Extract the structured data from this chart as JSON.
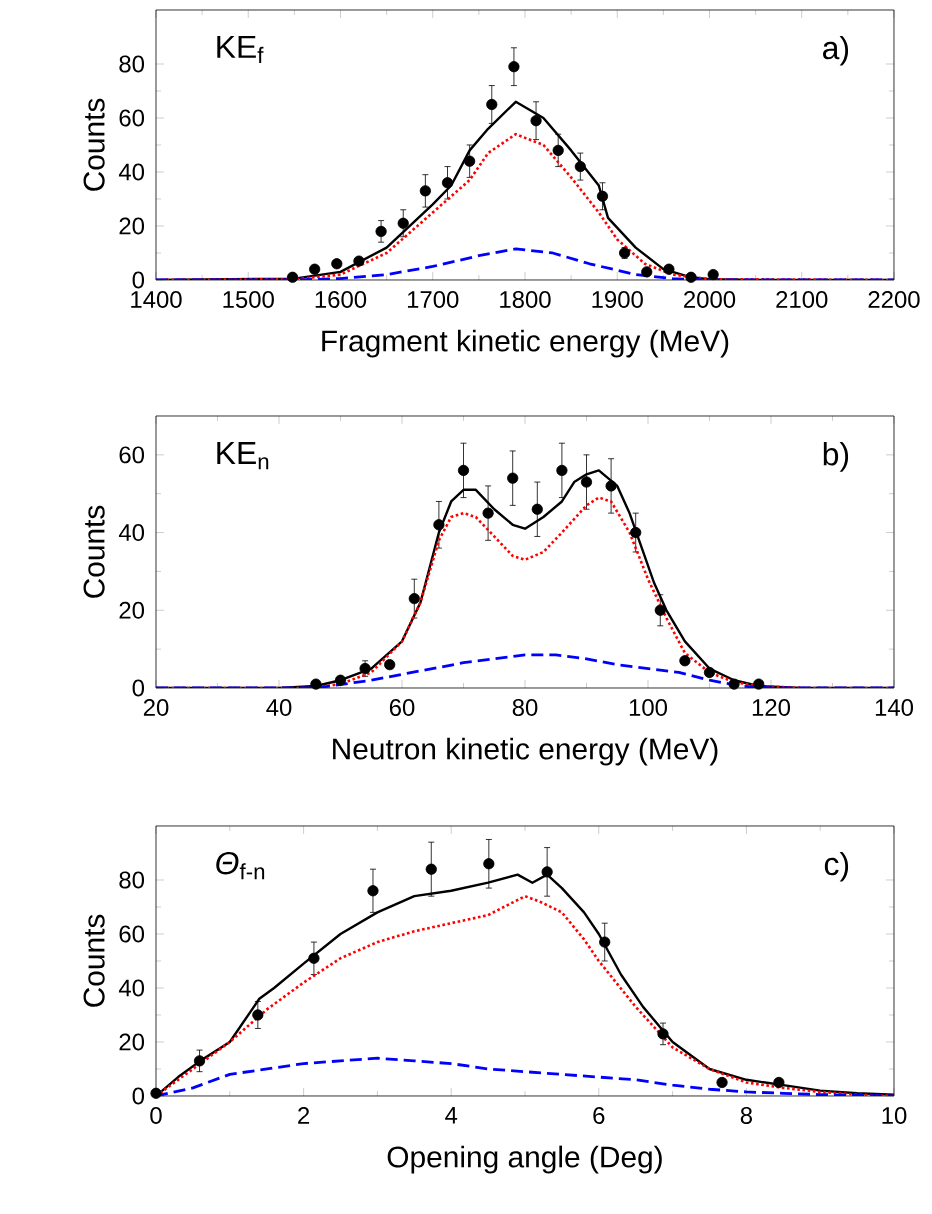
{
  "chart_data": [
    {
      "type": "line",
      "xlabel": "Fragment kinetic energy (MeV)",
      "ylabel": "Counts",
      "xlim": [
        1400,
        2200
      ],
      "ylim": [
        0,
        100
      ],
      "xticks": [
        1400,
        1500,
        1600,
        1700,
        1800,
        1900,
        2000,
        2100,
        2200
      ],
      "yticks": [
        0,
        20,
        40,
        60,
        80
      ],
      "annotations": [
        "KE$_{f}$",
        "a)"
      ],
      "series": [
        {
          "type": "scatter",
          "marker": "circle",
          "color": "#000000",
          "x": [
            1548,
            1572,
            1596,
            1620,
            1644,
            1668,
            1692,
            1716,
            1740,
            1764,
            1788,
            1812,
            1836,
            1860,
            1884,
            1908,
            1932,
            1956,
            1980,
            2004
          ],
          "values": [
            1,
            4,
            6,
            7,
            18,
            21,
            33,
            36,
            44,
            65,
            79,
            59,
            48,
            42,
            31,
            10,
            3,
            4,
            1,
            2
          ],
          "errors": [
            null,
            null,
            null,
            1,
            4,
            5,
            6,
            6,
            6,
            7,
            7,
            7,
            6,
            5,
            5,
            2,
            null,
            null,
            null,
            null
          ]
        },
        {
          "type": "line",
          "line_style": "solid",
          "color": "#000000",
          "x": [
            1400,
            1550,
            1600,
            1650,
            1700,
            1720,
            1740,
            1760,
            1790,
            1820,
            1850,
            1880,
            1890,
            1920,
            1950,
            1980,
            2000,
            2050,
            2200
          ],
          "values": [
            0,
            0.5,
            3,
            12,
            28,
            35,
            48,
            56,
            66,
            60,
            48,
            35,
            23,
            12,
            4,
            1,
            0.3,
            0,
            0
          ]
        },
        {
          "type": "line",
          "line_style": "dotted",
          "color": "#ff0000",
          "x": [
            1400,
            1550,
            1600,
            1650,
            1700,
            1740,
            1760,
            1790,
            1820,
            1850,
            1880,
            1900,
            1930,
            1960,
            2000,
            2200
          ],
          "values": [
            0,
            0.3,
            2,
            10,
            25,
            37,
            47,
            54,
            50,
            38,
            25,
            15,
            6,
            2,
            0.3,
            0
          ]
        },
        {
          "type": "line",
          "line_style": "dashed",
          "color": "#0000ff",
          "x": [
            1400,
            1550,
            1600,
            1650,
            1700,
            1750,
            1790,
            1830,
            1870,
            1920,
            1960,
            2000,
            2200
          ],
          "values": [
            0,
            0,
            0.5,
            2,
            5,
            9,
            11.5,
            10,
            6,
            2,
            0.5,
            0,
            0
          ]
        }
      ]
    },
    {
      "type": "line",
      "xlabel": "Neutron kinetic energy (MeV)",
      "ylabel": "Counts",
      "xlim": [
        20,
        140
      ],
      "ylim": [
        0,
        70
      ],
      "xticks": [
        20,
        40,
        60,
        80,
        100,
        120,
        140
      ],
      "yticks": [
        0,
        20,
        40,
        60
      ],
      "annotations": [
        "KE$_{n}$",
        "b)"
      ],
      "series": [
        {
          "type": "scatter",
          "marker": "circle",
          "color": "#000000",
          "x": [
            46,
            50,
            54,
            58,
            62,
            66,
            70,
            74,
            78,
            82,
            86,
            90,
            94,
            98,
            102,
            106,
            110,
            114,
            118
          ],
          "values": [
            1,
            2,
            5,
            6,
            23,
            42,
            56,
            45,
            54,
            46,
            56,
            53,
            52,
            40,
            20,
            7,
            4,
            1,
            1
          ],
          "errors": [
            null,
            null,
            2,
            1,
            5,
            6,
            7,
            7,
            7,
            7,
            7,
            7,
            7,
            5,
            4,
            1,
            null,
            null,
            null
          ]
        },
        {
          "type": "line",
          "line_style": "solid",
          "color": "#000000",
          "x": [
            20,
            40,
            46,
            50,
            55,
            60,
            63,
            66,
            68,
            70,
            72,
            75,
            78,
            80,
            83,
            86,
            88,
            90,
            92,
            95,
            97,
            99,
            101,
            103,
            106,
            110,
            114,
            118,
            125,
            140
          ],
          "values": [
            0,
            0,
            0.5,
            2,
            5,
            12,
            22,
            40,
            48,
            51,
            51,
            46,
            42,
            41,
            44,
            48,
            53,
            55,
            56,
            52,
            45,
            36,
            27,
            20,
            12,
            5,
            2,
            0.5,
            0,
            0
          ]
        },
        {
          "type": "line",
          "line_style": "dotted",
          "color": "#ff0000",
          "x": [
            20,
            45,
            50,
            55,
            60,
            63,
            66,
            68,
            70,
            72,
            75,
            78,
            80,
            83,
            86,
            90,
            92,
            94,
            97,
            100,
            103,
            106,
            110,
            114,
            118,
            125,
            140
          ],
          "values": [
            0,
            0,
            1,
            4,
            12,
            22,
            38,
            44,
            45,
            44,
            39,
            34,
            33,
            35,
            40,
            47,
            49,
            48,
            40,
            28,
            18,
            9,
            4,
            1.5,
            0.5,
            0,
            0
          ]
        },
        {
          "type": "line",
          "line_style": "dashed",
          "color": "#0000ff",
          "x": [
            20,
            46,
            55,
            60,
            65,
            70,
            75,
            80,
            85,
            90,
            95,
            100,
            105,
            110,
            115,
            120,
            140
          ],
          "values": [
            0,
            0,
            2,
            3.5,
            5,
            6.5,
            7.5,
            8.5,
            8.5,
            7.5,
            6,
            5,
            4,
            2,
            0.5,
            0,
            0
          ]
        }
      ]
    },
    {
      "type": "line",
      "xlabel": "Opening angle (Deg)",
      "ylabel": "Counts",
      "xlim": [
        0,
        10
      ],
      "ylim": [
        0,
        100
      ],
      "xticks": [
        0,
        2,
        4,
        6,
        8,
        10
      ],
      "yticks": [
        0,
        20,
        40,
        60,
        80
      ],
      "annotations": [
        "*Θ*$_{f-n}$",
        "c)"
      ],
      "series": [
        {
          "type": "scatter",
          "marker": "circle",
          "color": "#000000",
          "x": [
            0,
            0.59,
            1.38,
            2.14,
            2.94,
            3.73,
            4.51,
            5.3,
            6.08,
            6.87,
            7.67,
            8.44
          ],
          "values": [
            1,
            13,
            30,
            51,
            76,
            84,
            86,
            83,
            57,
            23,
            5,
            5
          ],
          "errors": [
            null,
            4,
            5,
            6,
            8,
            10,
            9,
            9,
            7,
            4,
            null,
            null
          ]
        },
        {
          "type": "line",
          "line_style": "solid",
          "color": "#000000",
          "x": [
            0,
            0.3,
            0.6,
            1,
            1.3,
            1.4,
            1.6,
            2,
            2.5,
            3,
            3.5,
            4,
            4.5,
            4.9,
            5.1,
            5.3,
            5.5,
            5.8,
            6,
            6.3,
            6.6,
            7,
            7.5,
            8,
            8.5,
            9,
            9.5,
            10
          ],
          "values": [
            0,
            7,
            13,
            20,
            32,
            36,
            40,
            49,
            60,
            68,
            74,
            76,
            79,
            82,
            79,
            82,
            77,
            68,
            60,
            45,
            33,
            20,
            10,
            6,
            4,
            2,
            1,
            0.5
          ]
        },
        {
          "type": "line",
          "line_style": "dotted",
          "color": "#ff0000",
          "x": [
            0,
            0.5,
            1,
            1.5,
            2,
            2.5,
            3,
            3.5,
            4,
            4.5,
            5,
            5.2,
            5.5,
            5.8,
            6,
            6.5,
            7,
            7.5,
            8,
            8.5,
            9,
            9.5,
            10
          ],
          "values": [
            0,
            10,
            20,
            32,
            42,
            51,
            57,
            61,
            64,
            67,
            74,
            72,
            68,
            58,
            50,
            33,
            18,
            10,
            5,
            3,
            1.5,
            0.5,
            0
          ]
        },
        {
          "type": "line",
          "line_style": "dashed",
          "color": "#0000ff",
          "x": [
            0,
            0.5,
            1,
            1.5,
            2,
            2.5,
            3,
            3.5,
            4,
            4.5,
            5,
            5.5,
            6,
            6.5,
            7,
            7.5,
            8,
            8.5,
            9,
            10
          ],
          "values": [
            0,
            3,
            8,
            10,
            12,
            13,
            14,
            13,
            12,
            10,
            9,
            8,
            7,
            6,
            4,
            2.5,
            1.5,
            1,
            0.5,
            0
          ]
        }
      ]
    }
  ]
}
